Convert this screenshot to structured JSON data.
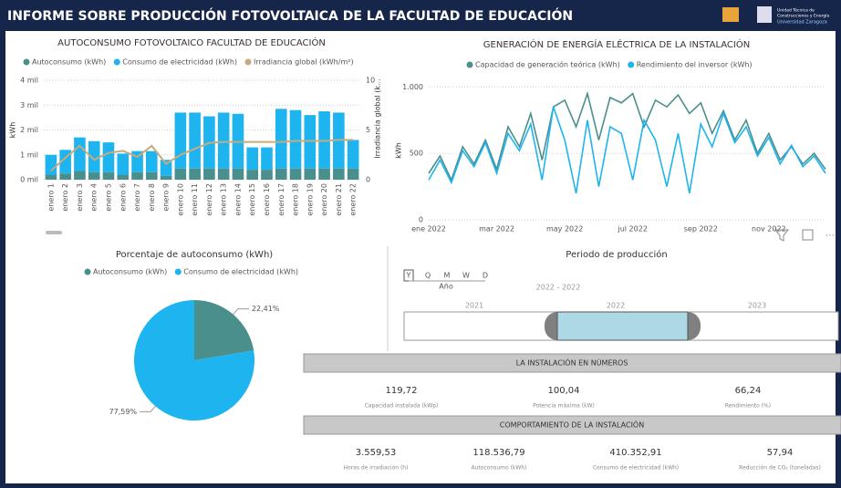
{
  "header": {
    "title": "INFORME SOBRE PRODUCCIÓN FOTOVOLTAICA DE LA FACULTAD DE EDUCACIÓN",
    "logo_lines": [
      "Unidad Técnica de",
      "Construcciones y Energía",
      "Universidad Zaragoza"
    ]
  },
  "chart_data": [
    {
      "type": "bar",
      "title": "AUTOCONSUMO FOTOVOLTAICO FACULTAD DE EDUCACIÓN",
      "ylabel": "kWh",
      "y2label": "Irradiancia global (k...",
      "stacked": true,
      "categories": [
        "enero 1",
        "enero 2",
        "enero 3",
        "enero 4",
        "enero 5",
        "enero 6",
        "enero 7",
        "enero 8",
        "enero 9",
        "enero 10",
        "enero 11",
        "enero 12",
        "enero 13",
        "enero 14",
        "enero 15",
        "enero 16",
        "enero 17",
        "enero 18",
        "enero 19",
        "enero 20",
        "enero 21",
        "enero 22"
      ],
      "series": [
        {
          "name": "Autoconsumo (kWh)",
          "color": "#4a8f8c",
          "values": [
            200,
            250,
            350,
            300,
            300,
            200,
            300,
            300,
            150,
            450,
            450,
            450,
            450,
            450,
            400,
            400,
            450,
            450,
            450,
            450,
            450,
            450
          ]
        },
        {
          "name": "Consumo de electricidad (kWh)",
          "color": "#1eb4f0",
          "values": [
            800,
            950,
            1350,
            1250,
            1200,
            850,
            850,
            850,
            650,
            2250,
            2250,
            2100,
            2250,
            2200,
            900,
            900,
            2400,
            2350,
            2150,
            2300,
            2250,
            1150
          ]
        },
        {
          "name": "Irradiancia global (kWh/m²)",
          "color": "#c8aa7c",
          "axis": "y2",
          "values": [
            0.9,
            2.2,
            3.4,
            2.0,
            2.7,
            2.9,
            2.3,
            3.4,
            1.6,
            2.5,
            3.1,
            3.7,
            3.8,
            3.8,
            3.8,
            3.8,
            3.8,
            3.9,
            3.9,
            3.9,
            4.0,
            4.0
          ]
        }
      ],
      "ylim": [
        0,
        4000
      ],
      "yticks": [
        {
          "value": 0,
          "label": "0 mil"
        },
        {
          "value": 1000,
          "label": "1 mil"
        },
        {
          "value": 2000,
          "label": "2 mil"
        },
        {
          "value": 3000,
          "label": "3 mil"
        },
        {
          "value": 4000,
          "label": "4 mil"
        }
      ],
      "y2lim": [
        0,
        10
      ],
      "y2ticks": [
        0,
        5,
        10
      ],
      "grid": true
    },
    {
      "type": "line",
      "title": "GENERACIÓN DE ENERGÍA ELÉCTRICA DE LA INSTALACIÓN",
      "ylabel": "kWh",
      "categories": [
        "ene 2022",
        null,
        null,
        null,
        null,
        null,
        "mar 2022",
        null,
        null,
        null,
        null,
        null,
        "may 2022",
        null,
        null,
        null,
        null,
        null,
        "jul 2022",
        null,
        null,
        null,
        null,
        null,
        "sep 2022",
        null,
        null,
        null,
        null,
        null,
        "nov 2022",
        null,
        null,
        null,
        null,
        null
      ],
      "series": [
        {
          "name": "Capacidad de generación teórica (kWh)",
          "color": "#4a8f8c",
          "values": [
            350,
            480,
            300,
            550,
            420,
            600,
            380,
            700,
            550,
            800,
            450,
            850,
            900,
            700,
            950,
            600,
            920,
            880,
            950,
            700,
            900,
            850,
            940,
            800,
            880,
            650,
            820,
            600,
            750,
            500,
            650,
            450,
            550,
            420,
            500,
            380
          ]
        },
        {
          "name": "Rendimiento del inversor (kWh)",
          "color": "#1eb4f0",
          "values": [
            300,
            450,
            280,
            520,
            400,
            580,
            350,
            650,
            520,
            720,
            300,
            850,
            600,
            200,
            750,
            250,
            700,
            650,
            300,
            750,
            600,
            250,
            650,
            200,
            720,
            550,
            800,
            580,
            700,
            480,
            620,
            420,
            560,
            400,
            480,
            350
          ]
        }
      ],
      "ylim": [
        0,
        1050
      ],
      "yticks": [
        0,
        500,
        {
          "value": 1000,
          "label": "1.000"
        }
      ],
      "grid": true
    },
    {
      "type": "pie",
      "title": "Porcentaje de autoconsumo (kWh)",
      "categories": [
        "Autoconsumo (kWh)",
        "Consumo de electricidad (kWh)"
      ],
      "colors": [
        "#4a8f8c",
        "#1eb4f0"
      ],
      "values": [
        22.41,
        77.59
      ],
      "value_labels": [
        "22,41%",
        "77,59%"
      ]
    }
  ],
  "slicer": {
    "title": "Periodo de producción",
    "granularity": [
      "Y",
      "Q",
      "M",
      "W",
      "D"
    ],
    "granularity_label": "Año",
    "range": "2022 - 2022",
    "years": [
      "2021",
      "2022",
      "2023"
    ]
  },
  "numbers": {
    "title": "LA INSTALACIÓN EN NÚMEROS",
    "items": [
      {
        "value": "119,72",
        "label": "Capacidad instalada (kWp)"
      },
      {
        "value": "100,04",
        "label": "Potencia máxima (kW)"
      },
      {
        "value": "66,24",
        "label": "Rendimiento (%)"
      }
    ]
  },
  "behaviour": {
    "title": "COMPORTAMIENTO DE LA INSTALACIÓN",
    "items": [
      {
        "value": "3.559,53",
        "label": "Horas de irradiación (h)"
      },
      {
        "value": "118.536,79",
        "label": "Autoconsumo (kWh)"
      },
      {
        "value": "410.352,91",
        "label": "Consumo de electricidad (kWh)"
      },
      {
        "value": "57,94",
        "label": "Reducción de CO₂ (toneladas)"
      }
    ]
  }
}
